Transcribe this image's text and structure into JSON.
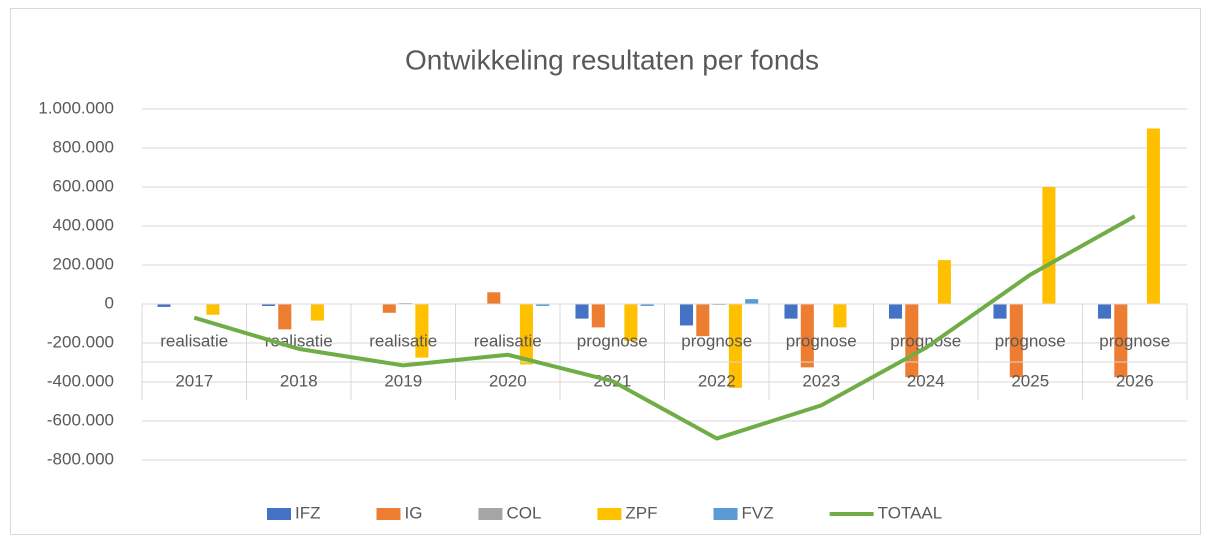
{
  "chart_data": {
    "type": "bar",
    "title": "Ontwikkeling resultaten per fonds",
    "categories": [
      "2017",
      "2018",
      "2019",
      "2020",
      "2021",
      "2022",
      "2023",
      "2024",
      "2025",
      "2026"
    ],
    "category_groups": [
      "realisatie",
      "realisatie",
      "realisatie",
      "realisatie",
      "prognose",
      "prognose",
      "prognose",
      "prognose",
      "prognose",
      "prognose"
    ],
    "series": [
      {
        "name": "IFZ",
        "type": "bar",
        "color": "#4472c4",
        "values": [
          -15000,
          -10000,
          0,
          0,
          -75000,
          -110000,
          -75000,
          -75000,
          -75000,
          -75000
        ]
      },
      {
        "name": "IG",
        "type": "bar",
        "color": "#ed7d31",
        "values": [
          0,
          -130000,
          -45000,
          60000,
          -120000,
          -165000,
          -325000,
          -375000,
          -375000,
          -375000
        ]
      },
      {
        "name": "COL",
        "type": "bar",
        "color": "#a5a5a5",
        "values": [
          0,
          0,
          5000,
          0,
          0,
          -5000,
          0,
          0,
          0,
          0
        ]
      },
      {
        "name": "ZPF",
        "type": "bar",
        "color": "#ffc000",
        "values": [
          -55000,
          -85000,
          -275000,
          -310000,
          -190000,
          -430000,
          -120000,
          225000,
          600000,
          900000
        ]
      },
      {
        "name": "FVZ",
        "type": "bar",
        "color": "#5b9bd5",
        "values": [
          0,
          0,
          0,
          -10000,
          -10000,
          25000,
          0,
          0,
          0,
          0
        ]
      },
      {
        "name": "TOTAAL",
        "type": "line",
        "color": "#70ad47",
        "values": [
          -70000,
          -230000,
          -315000,
          -260000,
          -395000,
          -690000,
          -520000,
          -225000,
          150000,
          450000
        ]
      }
    ],
    "ylim": [
      -800000,
      1000000
    ],
    "yticks": [
      {
        "value": -800000,
        "label": "-800.000"
      },
      {
        "value": -600000,
        "label": "-600.000"
      },
      {
        "value": -400000,
        "label": "-400.000"
      },
      {
        "value": -200000,
        "label": "-200.000"
      },
      0,
      {
        "value": 200000,
        "label": "200.000"
      },
      {
        "value": 400000,
        "label": "400.000"
      },
      {
        "value": 600000,
        "label": "600.000"
      },
      {
        "value": 800000,
        "label": "800.000"
      },
      {
        "value": 1000000,
        "label": "1.000.000"
      }
    ],
    "grid": true,
    "legend": "bottom"
  }
}
